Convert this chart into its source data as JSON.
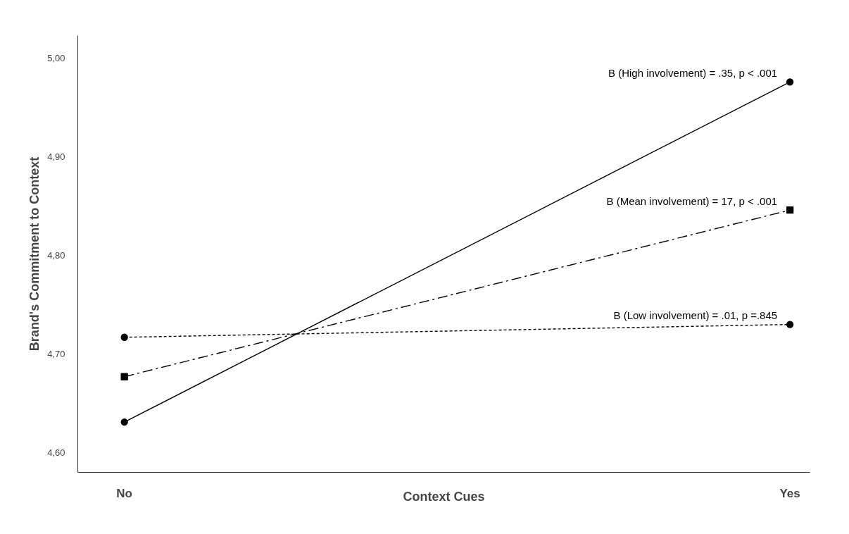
{
  "chart_data": {
    "type": "line",
    "xlabel": "Context Cues",
    "ylabel": "Brand's Commitment to Context",
    "categories": [
      "No",
      "Yes"
    ],
    "series": [
      {
        "name": "B (High involvement) = .35, p < .001",
        "color": "#000000",
        "values": [
          4.631,
          4.976
        ],
        "marker": "circle",
        "line_style": "solid"
      },
      {
        "name": "B (Mean involvement) = 17, p < .001",
        "color": "#000000",
        "values": [
          4.677,
          4.846
        ],
        "marker": "square",
        "line_style": "dashed"
      },
      {
        "name": "B (Low involvement) = .01, p =.845",
        "color": "#000000",
        "values": [
          4.717,
          4.73
        ],
        "marker": "circle",
        "line_style": "dotted"
      }
    ],
    "ylim": [
      4.58,
      5.023
    ],
    "yticks": [
      {
        "value": 4.6,
        "label": "4,60"
      },
      {
        "value": 4.7,
        "label": "4,70"
      },
      {
        "value": 4.8,
        "label": "4,80"
      },
      {
        "value": 4.9,
        "label": "4,90"
      },
      {
        "value": 5.0,
        "label": "5,00"
      }
    ],
    "grid": false,
    "legend": false
  }
}
